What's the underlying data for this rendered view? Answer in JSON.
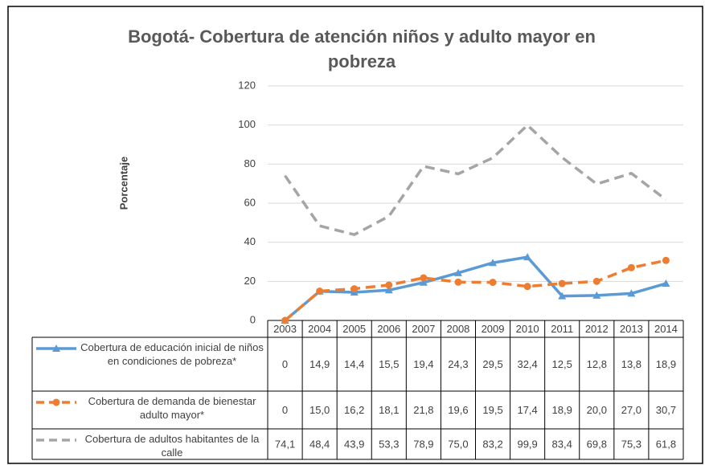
{
  "chart_data": {
    "type": "line",
    "title": "Bogotá- Cobertura de atención niños y adulto mayor en pobreza",
    "y_label": "Porcentaje",
    "categories": [
      "2003",
      "2004",
      "2005",
      "2006",
      "2007",
      "2008",
      "2009",
      "2010",
      "2011",
      "2012",
      "2013",
      "2014"
    ],
    "series": [
      {
        "name": "Cobertura de educación inicial de niños en condiciones de pobreza*",
        "color": "#5b9bd5",
        "dash": false,
        "marker": "triangle",
        "values": [
          0,
          14.9,
          14.4,
          15.5,
          19.4,
          24.3,
          29.5,
          32.4,
          12.5,
          12.8,
          13.8,
          18.9
        ],
        "value_labels": [
          "0",
          "14,9",
          "14,4",
          "15,5",
          "19,4",
          "24,3",
          "29,5",
          "32,4",
          "12,5",
          "12,8",
          "13,8",
          "18,9"
        ]
      },
      {
        "name": "Cobertura de demanda de bienestar adulto mayor*",
        "color": "#ed7d31",
        "dash": true,
        "marker": "circle",
        "values": [
          0,
          15.0,
          16.2,
          18.1,
          21.8,
          19.6,
          19.5,
          17.4,
          18.9,
          20.0,
          27.0,
          30.7
        ],
        "value_labels": [
          "0",
          "15,0",
          "16,2",
          "18,1",
          "21,8",
          "19,6",
          "19,5",
          "17,4",
          "18,9",
          "20,0",
          "27,0",
          "30,7"
        ]
      },
      {
        "name": "Cobertura de adultos habitantes de la calle",
        "color": "#a5a5a5",
        "dash": true,
        "marker": "none",
        "values": [
          74.1,
          48.4,
          43.9,
          53.3,
          78.9,
          75.0,
          83.2,
          99.9,
          83.4,
          69.8,
          75.3,
          61.8
        ],
        "value_labels": [
          "74,1",
          "48,4",
          "43,9",
          "53,3",
          "78,9",
          "75,0",
          "83,2",
          "99,9",
          "83,4",
          "69,8",
          "75,3",
          "61,8"
        ]
      }
    ],
    "ylim": [
      0,
      120
    ],
    "yticks": [
      0,
      20,
      40,
      60,
      80,
      100,
      120
    ],
    "grid": true
  }
}
